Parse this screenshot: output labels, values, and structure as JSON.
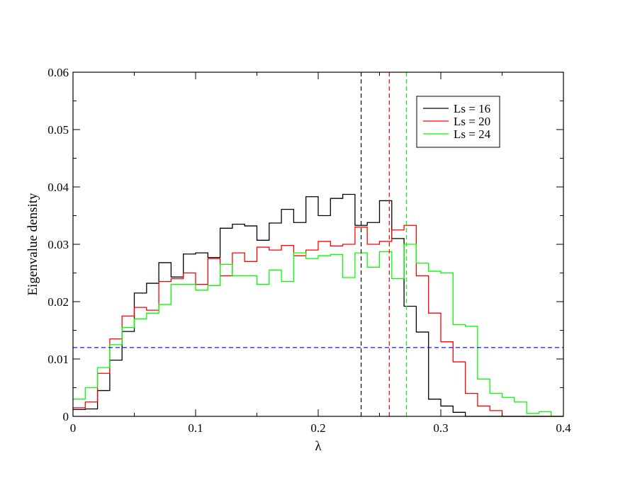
{
  "chart_data": {
    "type": "line",
    "xlabel": "λ",
    "ylabel": "Eigenvalue density",
    "xlim": [
      0,
      0.4
    ],
    "ylim": [
      0,
      0.06
    ],
    "x_ticks": [
      0,
      0.1,
      0.2,
      0.3,
      0.4
    ],
    "x_tick_labels": [
      "0",
      "0.1",
      "0.2",
      "0.3",
      "0.4"
    ],
    "y_ticks": [
      0,
      0.01,
      0.02,
      0.03,
      0.04,
      0.05,
      0.06
    ],
    "y_tick_labels": [
      "0",
      "0.01",
      "0.02",
      "0.03",
      "0.04",
      "0.05",
      "0.06"
    ],
    "grid": false,
    "legend_position": "top-right",
    "bin_width": 0.01,
    "bin_start": 0,
    "series": [
      {
        "name": "Ls = 16",
        "color": "#000000",
        "style": "step",
        "values": [
          0.0012,
          0.0013,
          0.0045,
          0.0098,
          0.0148,
          0.0215,
          0.0232,
          0.0268,
          0.0243,
          0.0283,
          0.0285,
          0.0277,
          0.0328,
          0.0335,
          0.0332,
          0.0307,
          0.0337,
          0.0361,
          0.0338,
          0.0383,
          0.035,
          0.038,
          0.0387,
          0.0333,
          0.0338,
          0.0376,
          0.031,
          0.0192,
          0.0147,
          0.003,
          0.0018,
          0.0007,
          0.0,
          0.0,
          0.0,
          0.0,
          0.0,
          0.0,
          0.0,
          0.0
        ]
      },
      {
        "name": "Ls = 20",
        "color": "#ff0000",
        "style": "step",
        "values": [
          0.0015,
          0.0025,
          0.0075,
          0.0135,
          0.0175,
          0.019,
          0.0185,
          0.0235,
          0.024,
          0.025,
          0.023,
          0.0275,
          0.0245,
          0.0285,
          0.027,
          0.0295,
          0.029,
          0.0298,
          0.028,
          0.029,
          0.0305,
          0.0297,
          0.03,
          0.033,
          0.03,
          0.0305,
          0.0325,
          0.0333,
          0.0245,
          0.018,
          0.013,
          0.0095,
          0.004,
          0.0018,
          0.001,
          0.0,
          0.0,
          0.0,
          0.0,
          0.0
        ]
      },
      {
        "name": "Ls = 24",
        "color": "#00ff00",
        "style": "step",
        "values": [
          0.003,
          0.005,
          0.0085,
          0.0125,
          0.0155,
          0.017,
          0.018,
          0.0195,
          0.023,
          0.023,
          0.022,
          0.0228,
          0.0265,
          0.0245,
          0.0245,
          0.023,
          0.0255,
          0.0235,
          0.0285,
          0.0275,
          0.028,
          0.0282,
          0.0242,
          0.0285,
          0.026,
          0.0287,
          0.024,
          0.03,
          0.0267,
          0.0253,
          0.025,
          0.016,
          0.0157,
          0.0065,
          0.004,
          0.0033,
          0.0025,
          0.0005,
          0.0008,
          0.0
        ]
      }
    ],
    "reference_lines": [
      {
        "orientation": "vertical",
        "x": 0.235,
        "color": "#000000",
        "style": "dashed"
      },
      {
        "orientation": "vertical",
        "x": 0.258,
        "color": "#ff0000",
        "style": "dashed"
      },
      {
        "orientation": "vertical",
        "x": 0.272,
        "color": "#00ff00",
        "style": "dashed"
      },
      {
        "orientation": "horizontal",
        "y": 0.012,
        "color": "#0000ff",
        "style": "dashed"
      }
    ]
  }
}
